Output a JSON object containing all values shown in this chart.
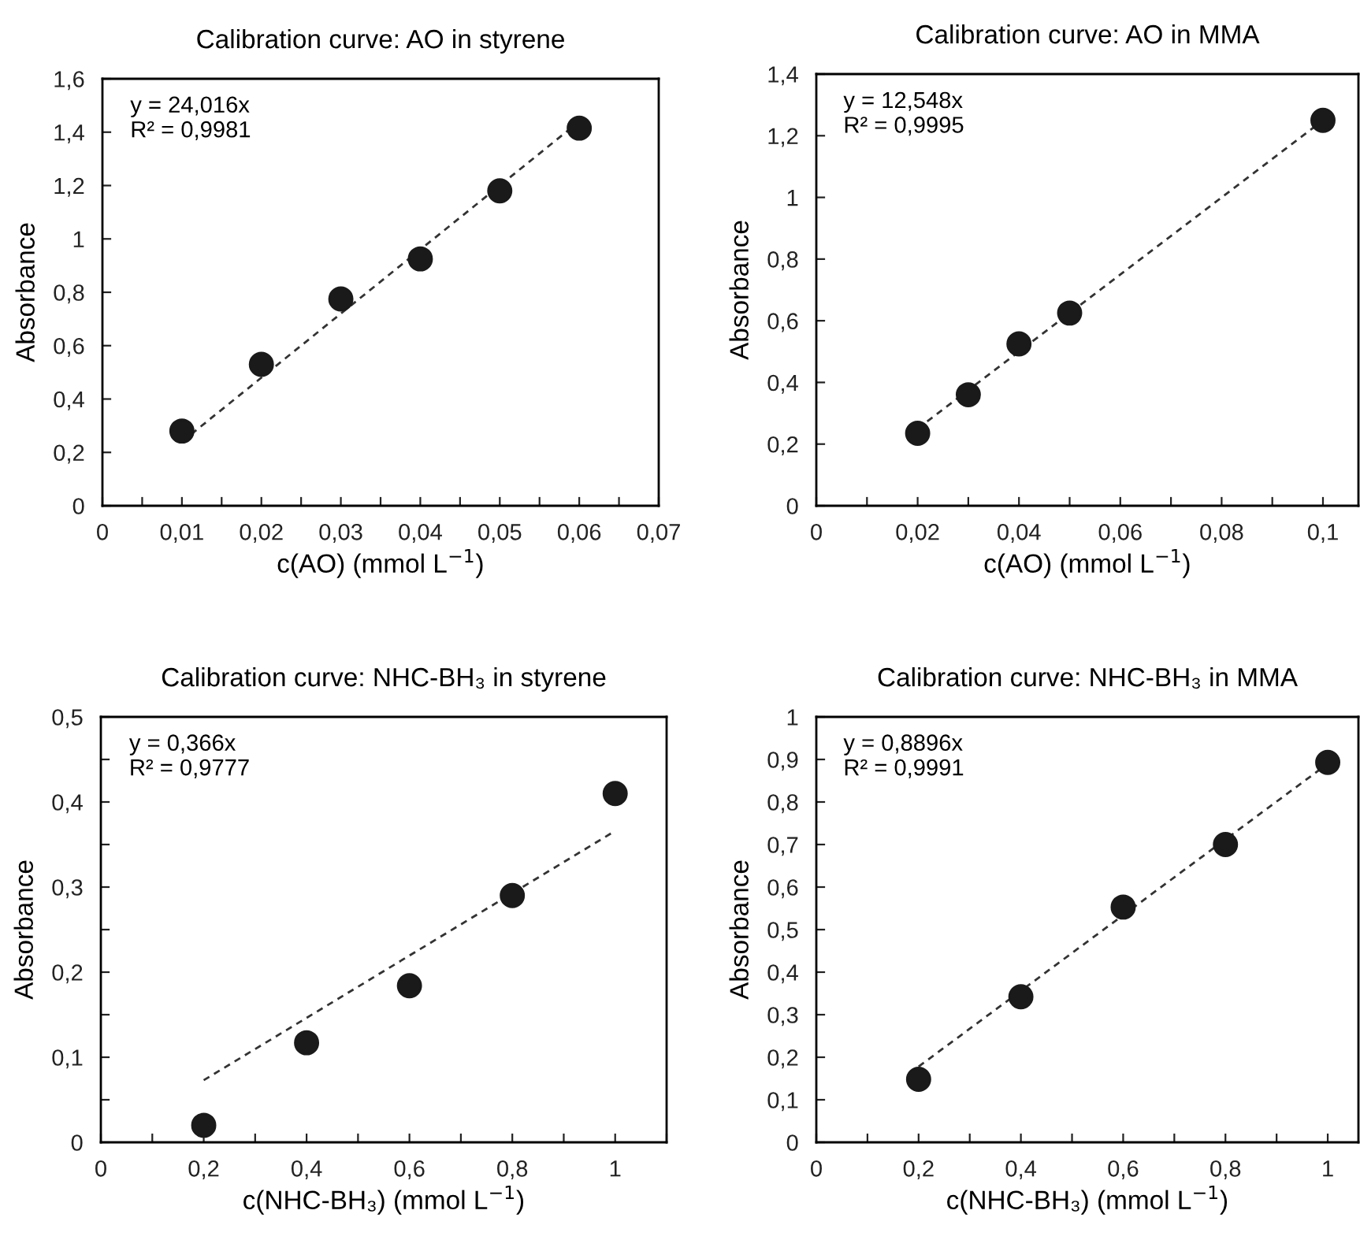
{
  "chart_data": [
    {
      "type": "scatter",
      "title": "Calibration curve: AO in styrene",
      "xlabel": "c(AO) (mmol L$^{−1}$)",
      "ylabel": "Absorbance",
      "annotations": [
        "y = 24,016x\nR² = 0,9981"
      ],
      "xlim": [
        0,
        0.07
      ],
      "ylim": [
        0,
        1.6
      ],
      "xticks": [
        0,
        {
          "value": 0.005,
          "label": null
        },
        {
          "value": 0.01,
          "label": "0,01"
        },
        {
          "value": 0.015,
          "label": null
        },
        {
          "value": 0.02,
          "label": "0,02"
        },
        {
          "value": 0.025,
          "label": null
        },
        {
          "value": 0.03,
          "label": "0,03"
        },
        {
          "value": 0.035,
          "label": null
        },
        {
          "value": 0.04,
          "label": "0,04"
        },
        {
          "value": 0.045,
          "label": null
        },
        {
          "value": 0.05,
          "label": "0,05"
        },
        {
          "value": 0.055,
          "label": null
        },
        {
          "value": 0.06,
          "label": "0,06"
        },
        {
          "value": 0.065,
          "label": null
        },
        {
          "value": 0.07,
          "label": "0,07"
        }
      ],
      "yticks": [
        0,
        {
          "value": 0.2,
          "label": "0,2"
        },
        {
          "value": 0.4,
          "label": "0,4"
        },
        {
          "value": 0.6,
          "label": "0,6"
        },
        {
          "value": 0.8,
          "label": "0,8"
        },
        1,
        {
          "value": 1.2,
          "label": "1,2"
        },
        {
          "value": 1.4,
          "label": "1,4"
        },
        {
          "value": 1.6,
          "label": "1,6"
        }
      ],
      "series": [
        {
          "color": "#1a1a1a",
          "marker": "circle",
          "x": [
            0.01,
            0.02,
            0.03,
            0.04,
            0.05,
            0.06
          ],
          "values": [
            0.28,
            0.53,
            0.775,
            0.925,
            1.18,
            1.415
          ]
        },
        {
          "type": "line",
          "color": "#333333",
          "line_style": "dashed",
          "marker": "none",
          "x": [
            0.01,
            0.06
          ],
          "values": [
            0.24,
            1.44
          ]
        }
      ]
    },
    {
      "type": "scatter",
      "title": "Calibration curve: AO in MMA",
      "xlabel": "c(AO) (mmol L$^{−1}$)",
      "ylabel": "Absorbance",
      "annotations": [
        "y = 12,548x\nR² = 0,9995"
      ],
      "xlim": [
        0,
        0.107
      ],
      "ylim": [
        0,
        1.4
      ],
      "xticks": [
        0,
        {
          "value": 0.01,
          "label": null
        },
        {
          "value": 0.02,
          "label": "0,02"
        },
        {
          "value": 0.03,
          "label": null
        },
        {
          "value": 0.04,
          "label": "0,04"
        },
        {
          "value": 0.05,
          "label": null
        },
        {
          "value": 0.06,
          "label": "0,06"
        },
        {
          "value": 0.07,
          "label": null
        },
        {
          "value": 0.08,
          "label": "0,08"
        },
        {
          "value": 0.09,
          "label": null
        },
        {
          "value": 0.1,
          "label": "0,1"
        }
      ],
      "yticks": [
        0,
        {
          "value": 0.2,
          "label": "0,2"
        },
        {
          "value": 0.4,
          "label": "0,4"
        },
        {
          "value": 0.6,
          "label": "0,6"
        },
        {
          "value": 0.8,
          "label": "0,8"
        },
        1,
        {
          "value": 1.2,
          "label": "1,2"
        },
        {
          "value": 1.4,
          "label": "1,4"
        }
      ],
      "series": [
        {
          "color": "#1a1a1a",
          "marker": "circle",
          "x": [
            0.02,
            0.03,
            0.04,
            0.05,
            0.1
          ],
          "values": [
            0.235,
            0.36,
            0.525,
            0.625,
            1.25
          ]
        },
        {
          "type": "line",
          "color": "#333333",
          "line_style": "dashed",
          "marker": "none",
          "x": [
            0.02,
            0.1
          ],
          "values": [
            0.25,
            1.25
          ]
        }
      ]
    },
    {
      "type": "scatter",
      "title": "Calibration curve: NHC-BH₃ in styrene",
      "xlabel": "c(NHC-BH₃) (mmol L$^{−1}$)",
      "ylabel": "Absorbance",
      "annotations": [
        "y = 0,366x\nR² = 0,9777"
      ],
      "xlim": [
        0,
        1.1
      ],
      "ylim": [
        0,
        0.5
      ],
      "xticks": [
        0,
        {
          "value": 0.1,
          "label": null
        },
        {
          "value": 0.2,
          "label": "0,2"
        },
        {
          "value": 0.3,
          "label": null
        },
        {
          "value": 0.4,
          "label": "0,4"
        },
        {
          "value": 0.5,
          "label": null
        },
        {
          "value": 0.6,
          "label": "0,6"
        },
        {
          "value": 0.7,
          "label": null
        },
        {
          "value": 0.8,
          "label": "0,8"
        },
        {
          "value": 0.9,
          "label": null
        },
        1,
        {
          "value": 1.1,
          "label": null
        }
      ],
      "yticks": [
        0,
        {
          "value": 0.05,
          "label": null
        },
        {
          "value": 0.1,
          "label": "0,1"
        },
        {
          "value": 0.15,
          "label": null
        },
        {
          "value": 0.2,
          "label": "0,2"
        },
        {
          "value": 0.25,
          "label": null
        },
        {
          "value": 0.3,
          "label": "0,3"
        },
        {
          "value": 0.35,
          "label": null
        },
        {
          "value": 0.4,
          "label": "0,4"
        },
        {
          "value": 0.45,
          "label": null
        },
        {
          "value": 0.5,
          "label": "0,5"
        }
      ],
      "series": [
        {
          "color": "#1a1a1a",
          "marker": "circle",
          "x": [
            0.2,
            0.4,
            0.6,
            0.8,
            1
          ],
          "values": [
            0.02,
            0.117,
            0.184,
            0.29,
            0.41
          ]
        },
        {
          "type": "line",
          "color": "#333333",
          "line_style": "dashed",
          "marker": "none",
          "x": [
            0.2,
            1
          ],
          "values": [
            0.073,
            0.366
          ]
        }
      ]
    },
    {
      "type": "scatter",
      "title": "Calibration curve: NHC-BH₃ in MMA",
      "xlabel": "c(NHC-BH₃) (mmol L$^{−1}$)",
      "ylabel": "Absorbance",
      "annotations": [
        "y = 0,8896x\nR² = 0,9991"
      ],
      "xlim": [
        0,
        1.06
      ],
      "ylim": [
        0,
        1
      ],
      "xticks": [
        0,
        {
          "value": 0.1,
          "label": null
        },
        {
          "value": 0.2,
          "label": "0,2"
        },
        {
          "value": 0.3,
          "label": null
        },
        {
          "value": 0.4,
          "label": "0,4"
        },
        {
          "value": 0.5,
          "label": null
        },
        {
          "value": 0.6,
          "label": "0,6"
        },
        {
          "value": 0.7,
          "label": null
        },
        {
          "value": 0.8,
          "label": "0,8"
        },
        {
          "value": 0.9,
          "label": null
        },
        1
      ],
      "yticks": [
        0,
        {
          "value": 0.1,
          "label": "0,1"
        },
        {
          "value": 0.2,
          "label": "0,2"
        },
        {
          "value": 0.3,
          "label": "0,3"
        },
        {
          "value": 0.4,
          "label": "0,4"
        },
        {
          "value": 0.5,
          "label": "0,5"
        },
        {
          "value": 0.6,
          "label": "0,6"
        },
        {
          "value": 0.7,
          "label": "0,7"
        },
        {
          "value": 0.8,
          "label": "0,8"
        },
        {
          "value": 0.9,
          "label": "0,9"
        },
        1
      ],
      "series": [
        {
          "color": "#1a1a1a",
          "marker": "circle",
          "x": [
            0.2,
            0.4,
            0.6,
            0.8,
            1
          ],
          "values": [
            0.148,
            0.342,
            0.553,
            0.7,
            0.893
          ]
        },
        {
          "type": "line",
          "color": "#333333",
          "line_style": "dashed",
          "marker": "none",
          "x": [
            0.2,
            1
          ],
          "values": [
            0.178,
            0.89
          ]
        }
      ]
    }
  ]
}
